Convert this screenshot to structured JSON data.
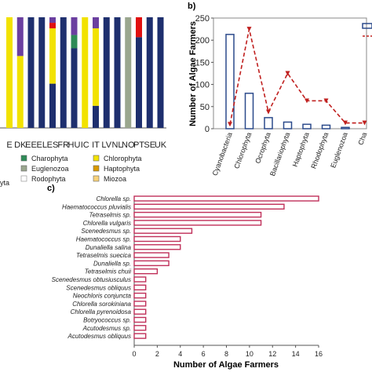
{
  "chart_data": [
    {
      "panel": "a",
      "type": "bar",
      "stacked": true,
      "categories": [
        "E",
        "DK",
        "EE",
        "EL",
        "ES",
        "FR",
        "HU",
        "IC",
        "IT",
        "LV",
        "NL",
        "NO",
        "PT",
        "SE",
        "UK"
      ],
      "category_labels": [
        "E",
        "DK",
        "EE",
        "EL",
        "ES",
        "FR",
        "HU",
        "IC",
        "IT",
        "LV",
        "NL",
        "NO",
        "PT",
        "SE",
        "UK"
      ],
      "ylim": [
        0,
        100
      ],
      "legend_position": "bottom",
      "legend": [
        "Charophyta",
        "Chlorophyta",
        "Euglenozoa",
        "Haptophyta",
        "Rodophyta",
        "Miozoa"
      ],
      "extra_legend_fragment": "yta",
      "series": [
        {
          "key": "cyanobacteria",
          "color": "#1e2f6e",
          "values": [
            0,
            0,
            100,
            100,
            40,
            100,
            72,
            0,
            20,
            100,
            100,
            0,
            82,
            100,
            100
          ]
        },
        {
          "key": "charophyta",
          "color": "#2e8b57",
          "values": [
            0,
            0,
            0,
            0,
            0,
            0,
            12,
            0,
            0,
            0,
            0,
            0,
            0,
            0,
            0
          ]
        },
        {
          "key": "chlorophyta",
          "color": "#f2e200",
          "values": [
            100,
            65,
            0,
            0,
            50,
            0,
            0,
            100,
            70,
            0,
            0,
            0,
            0,
            0,
            0
          ]
        },
        {
          "key": "ochrophyta",
          "color": "#b8860b",
          "values": [
            0,
            0,
            0,
            0,
            0,
            0,
            0,
            0,
            0,
            0,
            0,
            0,
            0,
            0,
            0
          ]
        },
        {
          "key": "haptophyta",
          "color": "#d99a00",
          "values": [
            0,
            0,
            0,
            0,
            0,
            0,
            0,
            0,
            0,
            0,
            0,
            0,
            0,
            0,
            0
          ]
        },
        {
          "key": "rodophyta",
          "color": "#ffffff",
          "values": [
            0,
            0,
            0,
            0,
            0,
            0,
            0,
            0,
            0,
            0,
            0,
            0,
            0,
            0,
            0
          ]
        },
        {
          "key": "miozoa",
          "color": "#f7d27a",
          "values": [
            0,
            0,
            0,
            0,
            0,
            0,
            0,
            0,
            0,
            0,
            0,
            0,
            0,
            0,
            0
          ]
        },
        {
          "key": "euglenozoa",
          "color": "#9aa68e",
          "values": [
            0,
            0,
            0,
            0,
            0,
            0,
            0,
            0,
            0,
            0,
            0,
            100,
            0,
            0,
            0
          ]
        },
        {
          "key": "other_red",
          "color": "#e01010",
          "values": [
            0,
            0,
            0,
            0,
            5,
            0,
            0,
            0,
            0,
            0,
            0,
            0,
            18,
            0,
            0
          ]
        },
        {
          "key": "other_purple",
          "color": "#6b3fa0",
          "values": [
            0,
            35,
            0,
            0,
            5,
            0,
            16,
            0,
            10,
            0,
            0,
            0,
            0,
            0,
            0
          ]
        }
      ]
    },
    {
      "panel": "b",
      "type": "bar",
      "categories": [
        "Cyanobacteria",
        "Chlorophyta",
        "Ocrophyta",
        "Bacillariophyta",
        "Haptophyta",
        "Rhodophyta",
        "Euglenozoa",
        "Cha"
      ],
      "ylabel": "Number of Algae Farmers",
      "yticks": [
        0,
        50,
        100,
        150,
        200,
        250
      ],
      "ylim": [
        0,
        250
      ],
      "legend_position": "top-right",
      "series": [
        {
          "kind": "bar",
          "color": "#2b4a8b",
          "values": [
            213,
            80,
            25,
            15,
            10,
            8,
            3,
            0
          ]
        },
        {
          "kind": "line",
          "color": "#c0201f",
          "dash": true,
          "values": [
            10,
            225,
            38,
            125,
            63,
            63,
            13,
            13
          ]
        }
      ]
    },
    {
      "panel": "c",
      "type": "bar",
      "orientation": "horizontal",
      "categories": [
        "Chlorella sp.",
        "Haematococcus pluvialis",
        "Tetraselmis sp.",
        "Chlorella vulgaris",
        "Scenedesmus sp.",
        "Haematococcus sp.",
        "Dunaliella salina",
        "Tetraselmis suecica",
        "Dunaliella sp.",
        "Tetraselmis chuii",
        "Scenedesmus obtusiusculus",
        "Scenedesmus obliquus",
        "Neochloris conjuncta",
        "Chlorella sorokiniana",
        "Chlorella pyrenoidosa",
        "Botryococcus sp.",
        "Acutodesmus sp.",
        "Acutodesmus obliquus"
      ],
      "values": [
        16,
        13,
        11,
        11,
        5,
        4,
        4,
        3,
        3,
        2,
        1,
        1,
        1,
        1,
        1,
        1,
        1,
        1
      ],
      "xlabel": "Number of Algae Farmers",
      "xticks": [
        0,
        2,
        4,
        6,
        8,
        10,
        12,
        14,
        16
      ],
      "xlim": [
        0,
        16
      ],
      "bar_color": "#c0305a"
    }
  ],
  "panel_labels": {
    "b": "b)",
    "c": "c)"
  }
}
